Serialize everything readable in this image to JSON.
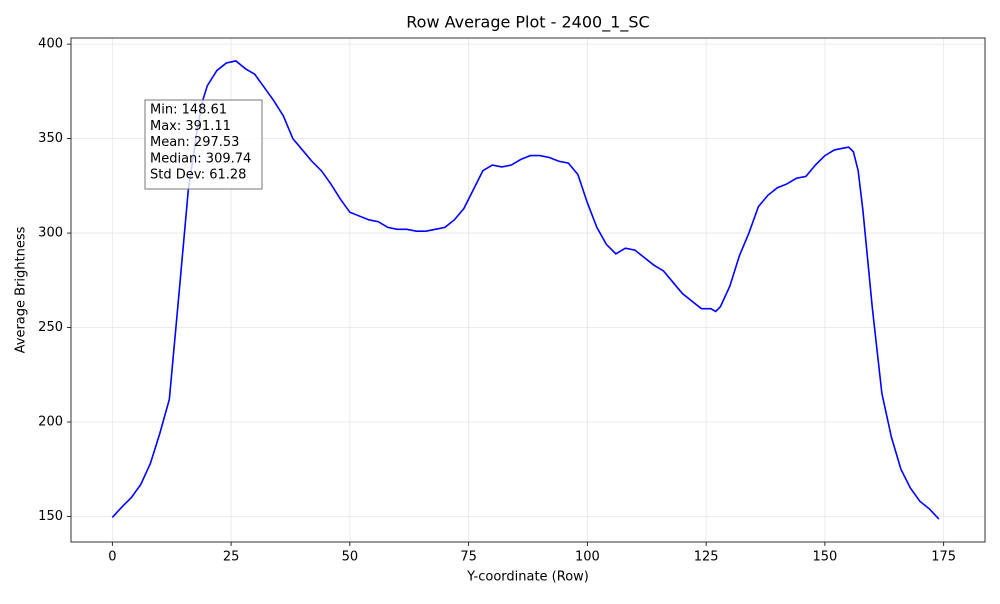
{
  "chart_data": {
    "type": "line",
    "title": "Row Average Plot - 2400_1_SC",
    "x_label": "Y-coordinate (Row)",
    "y_label": "Average Brightness",
    "annotation": [
      "Min: 148.61",
      "Max: 391.11",
      "Mean: 297.53",
      "Median: 309.74",
      "Std Dev: 61.28"
    ],
    "x": [
      0,
      2,
      4,
      6,
      8,
      10,
      12,
      14,
      16,
      18,
      19,
      20,
      22,
      24,
      26,
      28,
      30,
      32,
      34,
      36,
      38,
      40,
      42,
      44,
      46,
      48,
      50,
      52,
      54,
      56,
      58,
      60,
      62,
      64,
      66,
      68,
      70,
      72,
      74,
      76,
      78,
      80,
      82,
      84,
      86,
      88,
      90,
      92,
      94,
      96,
      98,
      100,
      102,
      104,
      106,
      108,
      110,
      112,
      114,
      116,
      118,
      120,
      122,
      124,
      126,
      127,
      128,
      130,
      132,
      134,
      136,
      138,
      140,
      142,
      144,
      146,
      148,
      150,
      152,
      154,
      155,
      156,
      157,
      158,
      160,
      162,
      164,
      166,
      168,
      170,
      172,
      174
    ],
    "values": [
      149.5,
      155,
      160,
      167,
      178,
      194,
      212,
      267,
      323,
      357,
      370,
      378,
      386,
      390,
      391.11,
      387,
      384,
      377,
      370,
      362,
      350,
      344,
      338,
      333,
      326,
      318,
      311,
      309,
      307,
      306,
      303,
      302,
      302,
      301,
      301,
      302,
      303,
      307,
      313,
      323,
      333,
      336,
      335,
      336,
      339,
      341,
      341,
      340,
      338,
      337,
      331,
      316,
      303,
      294,
      289,
      292,
      291,
      287,
      283,
      280,
      274,
      268,
      264,
      260,
      260,
      258.5,
      261,
      272,
      288,
      300,
      314,
      320,
      324,
      326,
      329,
      330,
      336,
      341,
      344,
      345,
      345.5,
      343,
      333,
      312,
      260,
      215,
      192,
      175,
      165,
      158,
      154,
      148.61
    ],
    "color": "#0000ff",
    "xlim": [
      -8.7,
      183.7
    ],
    "xticks": [
      0,
      25,
      50,
      75,
      100,
      125,
      150,
      175
    ],
    "ylim": [
      136.49,
      403.24
    ],
    "yticks": [
      150,
      200,
      250,
      300,
      350,
      400
    ],
    "grid": true
  }
}
